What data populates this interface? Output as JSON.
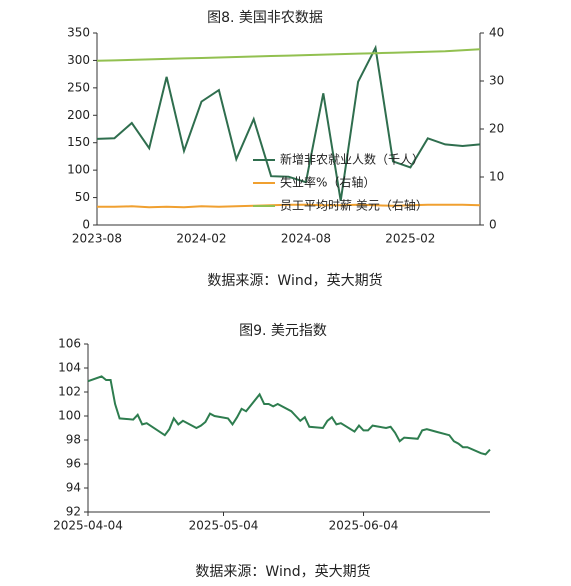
{
  "chart_data": [
    {
      "type": "line",
      "title": "图8. 美国非农数据",
      "source": "数据来源：Wind，英大期货",
      "categories": [
        "2023-08",
        null,
        null,
        null,
        null,
        null,
        "2024-02",
        null,
        null,
        null,
        null,
        null,
        "2024-08",
        null,
        null,
        null,
        null,
        null,
        "2025-02",
        null,
        null,
        null,
        null
      ],
      "series": [
        {
          "name": "新增非农就业人数（千人）",
          "color": "#2f6e4e",
          "values": [
            157,
            158,
            186,
            140,
            270,
            135,
            225,
            246,
            120,
            193,
            89,
            88,
            78,
            240,
            44,
            261,
            323,
            116,
            105,
            158,
            147,
            144,
            147
          ]
        },
        {
          "name": "失业率%（右轴）",
          "color": "#f0a030",
          "axis": "y2",
          "values": [
            3.8,
            3.8,
            3.9,
            3.7,
            3.8,
            3.7,
            3.9,
            3.8,
            3.9,
            4.0,
            4.1,
            4.2,
            4.2,
            4.1,
            4.1,
            4.2,
            4.1,
            4.0,
            4.1,
            4.2,
            4.2,
            4.2,
            4.1
          ]
        },
        {
          "name": "员工平均时薪 美元（右轴）",
          "color": "#92c050",
          "axis": "y2",
          "values": [
            34.2,
            34.3,
            34.4,
            34.5,
            34.6,
            34.7,
            34.8,
            34.9,
            35.0,
            35.1,
            35.2,
            35.3,
            35.4,
            35.5,
            35.6,
            35.7,
            35.8,
            35.9,
            36.0,
            36.1,
            36.2,
            36.4,
            36.6
          ]
        }
      ],
      "ylim": [
        0,
        350
      ],
      "yticks": [
        0,
        50,
        100,
        150,
        200,
        250,
        300,
        350
      ],
      "y2lim": [
        0,
        40
      ],
      "y2ticks": [
        0,
        10,
        20,
        30,
        40
      ],
      "legend": "center right",
      "grid": false
    },
    {
      "type": "line",
      "title": "图9. 美元指数",
      "source": "数据来源：Wind，英大期货",
      "x": [
        "2025-04-04",
        "2025-04-07",
        "2025-04-08",
        "2025-04-09",
        "2025-04-10",
        "2025-04-11",
        "2025-04-14",
        "2025-04-15",
        "2025-04-16",
        "2025-04-17",
        "2025-04-21",
        "2025-04-22",
        "2025-04-23",
        "2025-04-24",
        "2025-04-25",
        "2025-04-28",
        "2025-04-29",
        "2025-04-30",
        "2025-05-01",
        "2025-05-02",
        "2025-05-05",
        "2025-05-06",
        "2025-05-07",
        "2025-05-08",
        "2025-05-09",
        "2025-05-12",
        "2025-05-13",
        "2025-05-14",
        "2025-05-15",
        "2025-05-16",
        "2025-05-19",
        "2025-05-20",
        "2025-05-21",
        "2025-05-22",
        "2025-05-23",
        "2025-05-26",
        "2025-05-27",
        "2025-05-28",
        "2025-05-29",
        "2025-05-30",
        "2025-06-02",
        "2025-06-03",
        "2025-06-04",
        "2025-06-05",
        "2025-06-06",
        "2025-06-09",
        "2025-06-10",
        "2025-06-11",
        "2025-06-12",
        "2025-06-13",
        "2025-06-16",
        "2025-06-17",
        "2025-06-18",
        "2025-06-19",
        "2025-06-20",
        "2025-06-23",
        "2025-06-24",
        "2025-06-25",
        "2025-06-26",
        "2025-06-27",
        "2025-06-30",
        "2025-07-01",
        "2025-07-02"
      ],
      "series": [
        {
          "name": "美元指数",
          "color": "#2e7d4f",
          "values": [
            102.9,
            103.3,
            103.0,
            103.0,
            101.0,
            99.8,
            99.7,
            100.1,
            99.3,
            99.4,
            98.4,
            98.9,
            99.8,
            99.3,
            99.6,
            99.0,
            99.2,
            99.5,
            100.2,
            100.0,
            99.8,
            99.3,
            99.9,
            100.6,
            100.4,
            101.8,
            101.0,
            101.0,
            100.8,
            101.0,
            100.4,
            100.0,
            99.6,
            99.9,
            99.1,
            99.0,
            99.6,
            99.9,
            99.3,
            99.4,
            98.7,
            99.2,
            98.8,
            98.8,
            99.2,
            99.0,
            99.1,
            98.6,
            97.9,
            98.2,
            98.1,
            98.8,
            98.9,
            98.8,
            98.7,
            98.4,
            97.9,
            97.7,
            97.4,
            97.4,
            96.9,
            96.8,
            97.2
          ]
        }
      ],
      "xlim": [
        "2025-04-04",
        "2025-07-02"
      ],
      "xticks": [
        "2025-04-04",
        "2025-05-04",
        "2025-06-04"
      ],
      "ylim": [
        92,
        106
      ],
      "yticks": [
        92,
        94,
        96,
        98,
        100,
        102,
        104,
        106
      ],
      "grid": false
    }
  ]
}
